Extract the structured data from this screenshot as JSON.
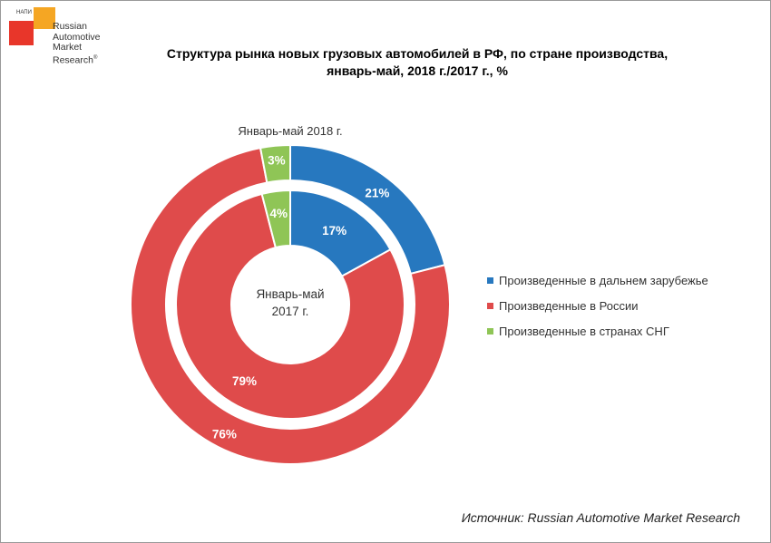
{
  "logo": {
    "small_text": "НАПИ",
    "lines": [
      "Russian",
      "Automotive",
      "Market",
      "Research"
    ],
    "mark": "®"
  },
  "title_line1": "Структура рынка новых грузовых автомобилей в РФ, по стране производства,",
  "title_line2": "январь-май, 2018 г./2017 г., %",
  "outer_ring_label": "Январь-май 2018 г.",
  "center_label_line1": "Январь-май",
  "center_label_line2": "2017 г.",
  "source": "Источник: Russian Automotive Market Research",
  "colors": {
    "far_abroad": "#2778bf",
    "russia": "#df4b4b",
    "cis": "#8fc556"
  },
  "chart_data": {
    "type": "pie",
    "subtype": "double-donut",
    "title": "Структура рынка новых грузовых автомобилей в РФ, по стране производства, январь-май, 2018 г./2017 г., %",
    "categories": [
      "Произведенные в дальнем зарубежье",
      "Произведенные в России",
      "Произведенные в странах СНГ"
    ],
    "series": [
      {
        "name": "Январь-май 2018 г.",
        "ring": "outer",
        "values": [
          21,
          76,
          3
        ],
        "labels": [
          "21%",
          "76%",
          "3%"
        ]
      },
      {
        "name": "Январь-май 2017 г.",
        "ring": "inner",
        "values": [
          17,
          79,
          4
        ],
        "labels": [
          "17%",
          "79%",
          "4%"
        ]
      }
    ],
    "legend_position": "right"
  }
}
